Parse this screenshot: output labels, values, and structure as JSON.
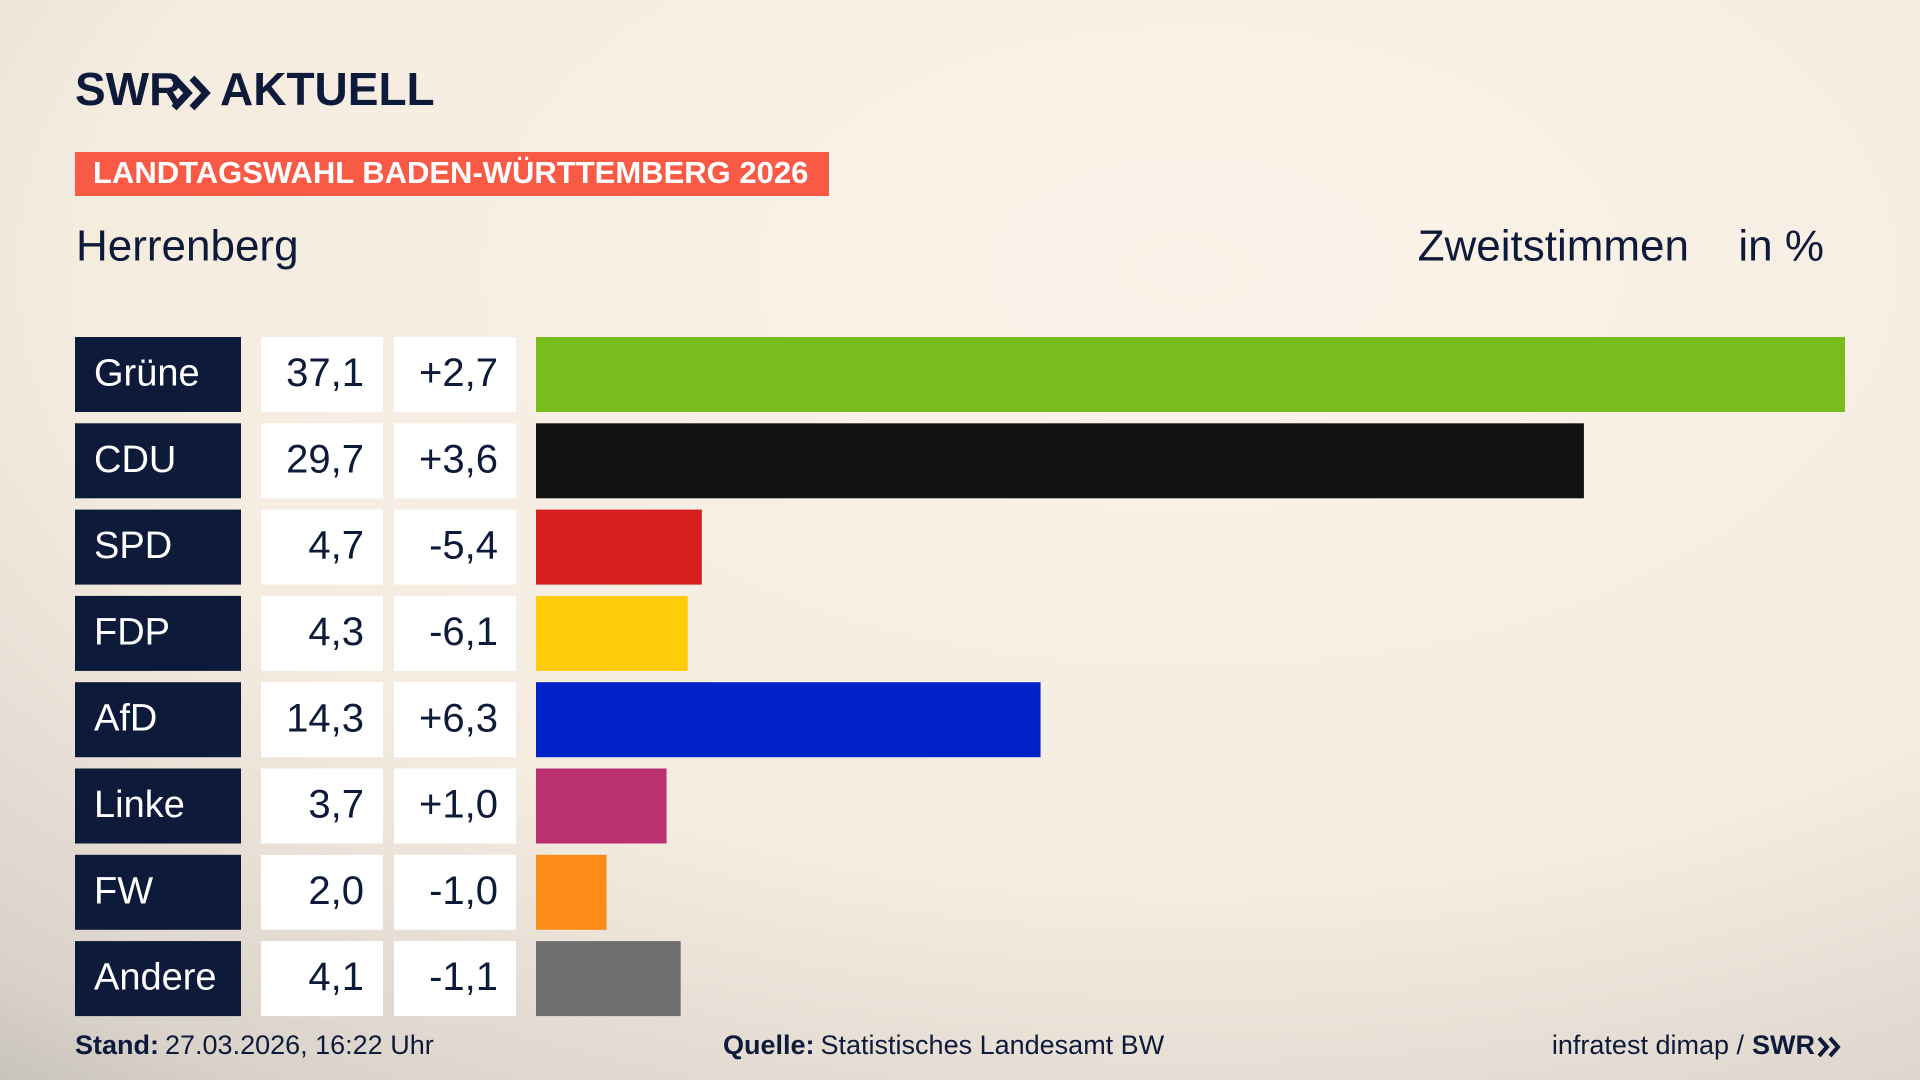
{
  "chart_data": {
    "type": "bar",
    "brand": "SWR",
    "brand_sub": "AKTUELL",
    "banner": "LANDTAGSWAHL BADEN-WÜRTTEMBERG 2026",
    "subtitle": "Herrenberg",
    "measure": "Zweitstimmen",
    "unit": "in %",
    "categories": [
      "Grüne",
      "CDU",
      "SPD",
      "FDP",
      "AfD",
      "Linke",
      "FW",
      "Andere"
    ],
    "values": [
      37.1,
      29.7,
      4.7,
      4.3,
      14.3,
      3.7,
      2.0,
      4.1
    ],
    "value_labels": [
      "37,1",
      "29,7",
      "4,7",
      "4,3",
      "14,3",
      "3,7",
      "2,0",
      "4,1"
    ],
    "changes": [
      2.7,
      3.6,
      -5.4,
      -6.1,
      6.3,
      1.0,
      -1.0,
      -1.1
    ],
    "change_labels": [
      "+2,7",
      "+3,6",
      "-5,4",
      "-6,1",
      "+6,3",
      "+1,0",
      "-1,0",
      "-1,1"
    ],
    "colors": [
      "#79bd1d",
      "#131313",
      "#d6201f",
      "#ffcc0a",
      "#0022c8",
      "#bb3070",
      "#fb8c17",
      "#6f6f70"
    ],
    "stand_label": "Stand:",
    "stand": "27.03.2026, 16:22 Uhr",
    "source_label": "Quelle:",
    "source": "Statistisches Landesamt BW",
    "credit": "infratest dimap /",
    "credit_brand": "SWR"
  }
}
